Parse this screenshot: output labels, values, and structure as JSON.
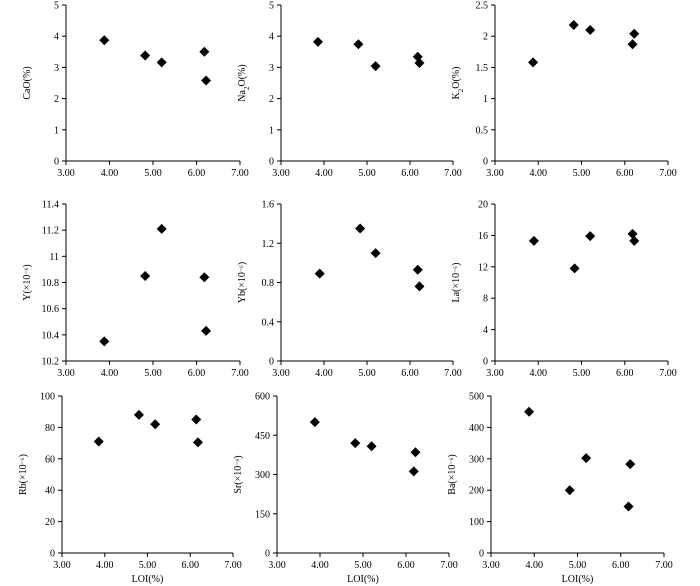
{
  "chart_data": [
    {
      "type": "scatter",
      "ylabel": "CaO(%)",
      "xlabel": "",
      "xlim": [
        3,
        7
      ],
      "ylim": [
        0,
        5
      ],
      "xticks": [
        "3.00",
        "4.00",
        "5.00",
        "6.00",
        "7.00"
      ],
      "yticks": [
        "0",
        "1",
        "2",
        "3",
        "4",
        "5"
      ],
      "x": [
        3.88,
        4.82,
        5.2,
        6.18,
        6.22
      ],
      "y": [
        3.87,
        3.38,
        3.16,
        3.5,
        2.58
      ]
    },
    {
      "type": "scatter",
      "ylabel": "Na2O(%)",
      "xlabel": "",
      "xlim": [
        3,
        7
      ],
      "ylim": [
        0,
        5
      ],
      "xticks": [
        "3.00",
        "4.00",
        "5.00",
        "6.00",
        "7.00"
      ],
      "yticks": [
        "0",
        "1",
        "2",
        "3",
        "4",
        "5"
      ],
      "x": [
        3.86,
        4.8,
        5.2,
        6.18,
        6.22
      ],
      "y": [
        3.82,
        3.74,
        3.04,
        3.34,
        3.14
      ]
    },
    {
      "type": "scatter",
      "ylabel": "K2O(%)",
      "xlabel": "",
      "xlim": [
        3,
        7
      ],
      "ylim": [
        0,
        2.5
      ],
      "xticks": [
        "3.00",
        "4.00",
        "5.00",
        "6.00",
        "7.00"
      ],
      "yticks": [
        "0",
        "0.5",
        "1",
        "1.5",
        "2",
        "2.5"
      ],
      "x": [
        3.88,
        4.82,
        5.2,
        6.18,
        6.22
      ],
      "y": [
        1.58,
        2.18,
        2.1,
        1.87,
        2.04
      ]
    },
    {
      "type": "scatter",
      "ylabel": "Y(×10⁻⁶)",
      "xlabel": "",
      "xlim": [
        3,
        7
      ],
      "ylim": [
        10.2,
        11.4
      ],
      "xticks": [
        "3.00",
        "4.00",
        "5.00",
        "6.00",
        "7.00"
      ],
      "yticks": [
        "10.2",
        "10.4",
        "10.6",
        "10.8",
        "11",
        "11.2",
        "11.4"
      ],
      "x": [
        3.88,
        4.82,
        5.2,
        6.18,
        6.22
      ],
      "y": [
        10.35,
        10.85,
        11.21,
        10.84,
        10.43
      ]
    },
    {
      "type": "scatter",
      "ylabel": "Yb(×10⁻⁶)",
      "xlabel": "",
      "xlim": [
        3,
        7
      ],
      "ylim": [
        0,
        1.6
      ],
      "xticks": [
        "3.00",
        "4.00",
        "5.00",
        "6.00",
        "7.00"
      ],
      "yticks": [
        "0",
        "0.4",
        "0.8",
        "1.2",
        "1.6"
      ],
      "x": [
        3.9,
        4.84,
        5.2,
        6.18,
        6.22
      ],
      "y": [
        0.89,
        1.35,
        1.1,
        0.93,
        0.76
      ]
    },
    {
      "type": "scatter",
      "ylabel": "La(×10⁻⁶)",
      "xlabel": "",
      "xlim": [
        3,
        7
      ],
      "ylim": [
        0,
        20
      ],
      "xticks": [
        "3.00",
        "4.00",
        "5.00",
        "6.00",
        "7.00"
      ],
      "yticks": [
        "0",
        "4",
        "8",
        "12",
        "16",
        "20"
      ],
      "x": [
        3.9,
        4.84,
        5.2,
        6.18,
        6.22
      ],
      "y": [
        15.3,
        11.8,
        15.9,
        16.2,
        15.3
      ]
    },
    {
      "type": "scatter",
      "ylabel": "Rb(×10⁻⁶)",
      "xlabel": "LOI(%)",
      "xlim": [
        3,
        7
      ],
      "ylim": [
        0,
        100
      ],
      "xticks": [
        "3.00",
        "4.00",
        "5.00",
        "6.00",
        "7.00"
      ],
      "yticks": [
        "0",
        "20",
        "40",
        "60",
        "80",
        "100"
      ],
      "x": [
        3.86,
        4.8,
        5.18,
        6.14,
        6.18
      ],
      "y": [
        71,
        88,
        82,
        85,
        70.5
      ]
    },
    {
      "type": "scatter",
      "ylabel": "Sr(×10⁻⁶)",
      "xlabel": "LOI(%)",
      "xlim": [
        3,
        7
      ],
      "ylim": [
        0,
        600
      ],
      "xticks": [
        "3.00",
        "4.00",
        "5.00",
        "6.00",
        "7.00"
      ],
      "yticks": [
        "0",
        "150",
        "300",
        "450",
        "600"
      ],
      "x": [
        3.88,
        4.82,
        5.2,
        6.18,
        6.22
      ],
      "y": [
        500,
        420,
        408,
        312,
        385
      ]
    },
    {
      "type": "scatter",
      "ylabel": "Ba(×10⁻⁶)",
      "xlabel": "LOI(%)",
      "xlim": [
        3,
        7
      ],
      "ylim": [
        0,
        500
      ],
      "xticks": [
        "3.00",
        "4.00",
        "5.00",
        "6.00",
        "7.00"
      ],
      "yticks": [
        "0",
        "100",
        "200",
        "300",
        "400",
        "500"
      ],
      "x": [
        3.88,
        4.82,
        5.2,
        6.18,
        6.22
      ],
      "y": [
        450,
        200,
        302,
        148,
        283
      ]
    }
  ]
}
